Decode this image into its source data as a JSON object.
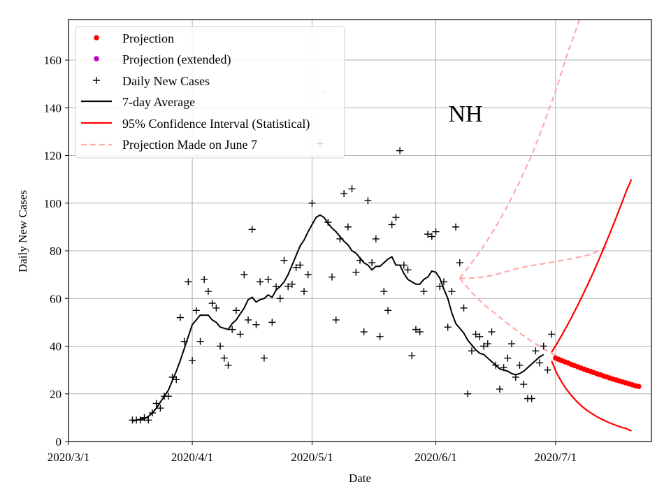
{
  "chart_data": {
    "type": "scatter",
    "state_label": "NH",
    "xlabel": "Date",
    "ylabel": "Daily New Cases",
    "grid": true,
    "legend_position": "top-left",
    "xlim": [
      "2020-03-01",
      "2020-07-25"
    ],
    "ylim": [
      0,
      177
    ],
    "x_ticks": [
      "2020/3/1",
      "2020/4/1",
      "2020/5/1",
      "2020/6/1",
      "2020/7/1"
    ],
    "y_ticks": [
      "0",
      "20",
      "40",
      "60",
      "80",
      "100",
      "120",
      "140",
      "160"
    ],
    "legend": [
      {
        "label": "Projection",
        "style": "dot",
        "color": "#ff0000"
      },
      {
        "label": "Projection (extended)",
        "style": "dot",
        "color": "#bf00bf"
      },
      {
        "label": "Daily New Cases",
        "style": "plus",
        "color": "#000000"
      },
      {
        "label": "7-day Average",
        "style": "line",
        "color": "#000000"
      },
      {
        "label": "95% Confidence Interval (Statistical)",
        "style": "line",
        "color": "#ff0000"
      },
      {
        "label": "Projection Made on June 7",
        "style": "dashed",
        "color": "#ffaaaa"
      }
    ],
    "daily_new_cases": {
      "start_date": "2020-03-17",
      "values": [
        9,
        9,
        9,
        10,
        9,
        12,
        16,
        14,
        19,
        19,
        27,
        26,
        52,
        42,
        67,
        34,
        55,
        42,
        68,
        63,
        58,
        56,
        40,
        35,
        32,
        47,
        55,
        45,
        70,
        51,
        89,
        49,
        67,
        35,
        68,
        50,
        65,
        60,
        76,
        65,
        66,
        73,
        74,
        63,
        70,
        100,
        null,
        125,
        147,
        92,
        69,
        51,
        85,
        104,
        90,
        106,
        71,
        76,
        46,
        101,
        75,
        85,
        44,
        63,
        55,
        91,
        94,
        122,
        74,
        72,
        36,
        47,
        46,
        63,
        87,
        86,
        88,
        65,
        67,
        48,
        63,
        90,
        75,
        56,
        20,
        38,
        45,
        44,
        40,
        41,
        46,
        32,
        22,
        31,
        35,
        41,
        27,
        32,
        24,
        18,
        18,
        38,
        33,
        40,
        30,
        45
      ]
    },
    "seven_day_average": {
      "start_date": "2020-03-17",
      "values": [
        8.5,
        9.0,
        9.3,
        9.6,
        10.5,
        12,
        14,
        16.5,
        19,
        21.5,
        25.5,
        29.5,
        34,
        39,
        44,
        49,
        51,
        53,
        53,
        53,
        51,
        50,
        48,
        47.5,
        47,
        49.5,
        51,
        53.5,
        56,
        59.5,
        60.5,
        58.5,
        59.5,
        60,
        61.5,
        60.5,
        63.5,
        65,
        67,
        70,
        74,
        78,
        82,
        84.5,
        88,
        91,
        94,
        95,
        94,
        91.5,
        89.5,
        88,
        86,
        84,
        82.5,
        80,
        79,
        77,
        75,
        74,
        72,
        73.5,
        73.5,
        75,
        76.5,
        77.5,
        74,
        74,
        70.5,
        68,
        67,
        66,
        66,
        68,
        69,
        71.5,
        71,
        68.5,
        64,
        60,
        54,
        49.5,
        47.5,
        45.5,
        42.5,
        40.5,
        38.5,
        37,
        36.5,
        35,
        33.5,
        32,
        30.5,
        30,
        29.5,
        28.5,
        28,
        28.5,
        29.5,
        31,
        32.5,
        34,
        35.5,
        36.5
      ]
    },
    "projection": {
      "start_date": "2020-07-01",
      "values": [
        35.0,
        34.4,
        33.9,
        33.4,
        32.9,
        32.3,
        31.8,
        31.3,
        30.8,
        30.3,
        29.8,
        29.4,
        28.9,
        28.4,
        28.0,
        27.5,
        27.1,
        26.6,
        26.2,
        25.8,
        25.4,
        25.0,
        24.6,
        24.2,
        23.8,
        23.4,
        23.1
      ]
    },
    "projection_extended": {
      "values": []
    },
    "confidence_interval": {
      "start_date": "2020-06-30",
      "end_date": "2020-07-20",
      "upper": [
        37.5,
        40.8,
        44.4,
        48.2,
        52.1,
        56.2,
        60.4,
        64.8,
        69.3,
        74.0,
        78.9,
        83.9,
        89.0,
        94.3,
        99.7,
        105.2,
        110.0
      ],
      "lower": [
        33.8,
        28.8,
        25.0,
        21.8,
        19.2,
        16.9,
        14.9,
        13.2,
        11.8,
        10.5,
        9.4,
        8.4,
        7.5,
        6.7,
        6.0,
        5.4,
        4.4
      ]
    },
    "projection_june_7": {
      "start_date": "2020-06-07",
      "dates_offsets": [
        0,
        3,
        6,
        9,
        12,
        15,
        18,
        21,
        24,
        27,
        30,
        33,
        37
      ],
      "central": [
        68.5,
        68.5,
        69.0,
        70.0,
        71.5,
        72.8,
        73.8,
        74.6,
        75.5,
        76.4,
        77.4,
        78.6,
        82.0
      ],
      "upper": [
        68.5,
        75.0,
        82.0,
        90.0,
        99.0,
        109.0,
        120.0,
        133.0,
        147.0,
        163.0,
        177.0,
        null,
        null
      ],
      "lower": [
        68.5,
        62.5,
        57.5,
        53.5,
        49.5,
        45.5,
        42.0,
        39.0,
        36.0,
        33.5,
        31.0,
        28.5,
        26.5
      ]
    }
  }
}
